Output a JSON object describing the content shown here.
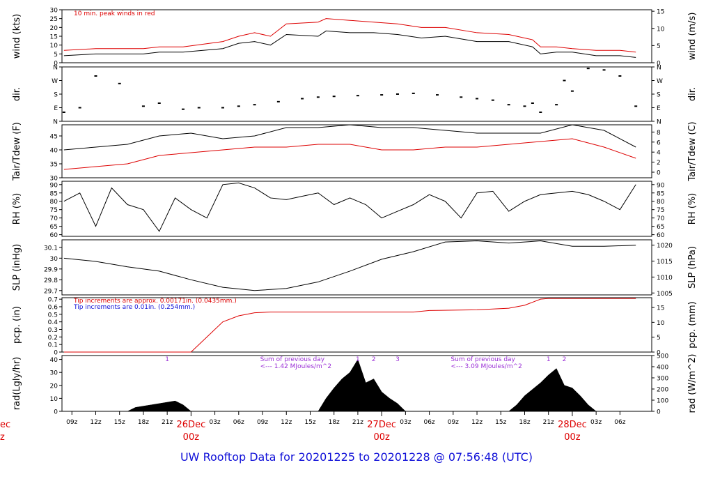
{
  "page": {
    "title": "UW Rooftop Data for 20201225  to  20201228 @ 07:56:48  (UTC)"
  },
  "chart_data": [
    {
      "type": "line",
      "ylabel": "wind (kts)",
      "ylabel_right": "wind (m/s)",
      "ylim": [
        0,
        30
      ],
      "ylim_right": [
        0,
        15.43
      ],
      "yticks": [
        0,
        5,
        10,
        15,
        20,
        25,
        30
      ],
      "yticks_right": [
        0,
        5,
        10,
        15
      ],
      "annotation": "10 min. peak winds in red",
      "series": [
        {
          "color": "#000000",
          "x": [
            8.0,
            12,
            18,
            20,
            23,
            28,
            30,
            32,
            34,
            36,
            40,
            41,
            44,
            47,
            50,
            53,
            56,
            60,
            64,
            67,
            68,
            70,
            72,
            75,
            78,
            80
          ],
          "y": [
            4,
            5,
            5,
            6,
            6,
            8,
            11,
            12,
            10,
            16,
            15,
            18,
            17,
            17,
            16,
            14,
            15,
            12,
            12,
            9,
            5,
            6,
            6,
            4,
            4,
            3
          ]
        },
        {
          "color": "#dd0000",
          "x": [
            8.0,
            12,
            18,
            20,
            23,
            28,
            30,
            32,
            34,
            36,
            40,
            41,
            44,
            47,
            50,
            53,
            56,
            60,
            64,
            67,
            68,
            70,
            72,
            75,
            78,
            80
          ],
          "y": [
            7,
            8,
            8,
            9,
            9,
            12,
            15,
            17,
            15,
            22,
            23,
            25,
            24,
            23,
            22,
            20,
            20,
            17,
            16,
            13,
            9,
            9,
            8,
            7,
            7,
            6
          ]
        }
      ]
    },
    {
      "type": "scatter",
      "ylabel": "dir.",
      "ylabel_right": "dir.",
      "yticks": [
        "N",
        "E",
        "S",
        "W",
        "N"
      ],
      "ylim": [
        0,
        360
      ],
      "series": [
        {
          "color": "#000000",
          "x": [
            8,
            10,
            12,
            15,
            18,
            20,
            23,
            25,
            28,
            30,
            32,
            35,
            38,
            40,
            42,
            45,
            48,
            50,
            52,
            55,
            58,
            60,
            62,
            64,
            66,
            67,
            68,
            70,
            71,
            72,
            74,
            76,
            78,
            80
          ],
          "y": [
            60,
            90,
            300,
            250,
            100,
            120,
            80,
            90,
            90,
            100,
            110,
            130,
            150,
            160,
            165,
            170,
            175,
            180,
            185,
            175,
            160,
            150,
            140,
            110,
            100,
            120,
            60,
            110,
            270,
            200,
            350,
            340,
            300,
            100
          ]
        }
      ]
    },
    {
      "type": "line",
      "ylabel": "Tair/Tdew (F)",
      "ylabel_right": "Tair/Tdew (C)",
      "ylim": [
        30,
        49
      ],
      "yticks": [
        30,
        35,
        40,
        45
      ],
      "yticks_right": [
        0,
        2,
        4,
        6,
        8
      ],
      "series": [
        {
          "color": "#000000",
          "x": [
            8,
            12,
            16,
            20,
            24,
            28,
            32,
            36,
            40,
            44,
            48,
            52,
            56,
            60,
            64,
            68,
            72,
            76,
            80
          ],
          "y": [
            40,
            41,
            42,
            45,
            46,
            44,
            45,
            48,
            48,
            49,
            48,
            48,
            47,
            46,
            46,
            46,
            49,
            47,
            41
          ]
        },
        {
          "color": "#dd0000",
          "x": [
            8,
            12,
            16,
            20,
            24,
            28,
            32,
            36,
            40,
            44,
            48,
            52,
            56,
            60,
            64,
            68,
            72,
            76,
            80
          ],
          "y": [
            33,
            34,
            35,
            38,
            39,
            40,
            41,
            41,
            42,
            42,
            40,
            40,
            41,
            41,
            42,
            43,
            44,
            41,
            37
          ]
        }
      ]
    },
    {
      "type": "line",
      "ylabel": "RH (%)",
      "ylabel_right": "RH (%)",
      "ylim": [
        59,
        92
      ],
      "yticks": [
        60,
        65,
        70,
        75,
        80,
        85,
        90
      ],
      "yticks_right": [
        60,
        65,
        70,
        75,
        80,
        85,
        90
      ],
      "series": [
        {
          "color": "#000000",
          "x": [
            8,
            10,
            12,
            14,
            16,
            18,
            20,
            22,
            24,
            26,
            28,
            30,
            32,
            34,
            36,
            38,
            40,
            42,
            44,
            46,
            48,
            50,
            52,
            54,
            56,
            58,
            60,
            62,
            64,
            66,
            68,
            70,
            72,
            74,
            76,
            78,
            80
          ],
          "y": [
            80,
            85,
            65,
            88,
            78,
            75,
            62,
            82,
            75,
            70,
            90,
            91,
            88,
            82,
            81,
            83,
            85,
            78,
            82,
            78,
            70,
            74,
            78,
            84,
            80,
            70,
            85,
            86,
            74,
            80,
            84,
            85,
            86,
            84,
            80,
            75,
            90
          ]
        }
      ]
    },
    {
      "type": "line",
      "ylabel": "SLP (inHg)",
      "ylabel_right": "SLP (hPa)",
      "ylim": [
        29.66,
        30.17
      ],
      "yticks": [
        29.7,
        29.8,
        29.9,
        30.0,
        30.1
      ],
      "yticks_right": [
        1005,
        1010,
        1015,
        1020
      ],
      "series": [
        {
          "color": "#000000",
          "x": [
            8,
            12,
            16,
            20,
            24,
            28,
            32,
            36,
            40,
            44,
            48,
            52,
            56,
            60,
            64,
            68,
            72,
            76,
            80
          ],
          "y": [
            30.0,
            29.97,
            29.92,
            29.88,
            29.8,
            29.73,
            29.7,
            29.72,
            29.78,
            29.88,
            29.99,
            30.06,
            30.15,
            30.16,
            30.14,
            30.16,
            30.11,
            30.11,
            30.12
          ]
        }
      ]
    },
    {
      "type": "line",
      "ylabel": "pcp. (in)",
      "ylabel_right": "pcp. (mm)",
      "ylim": [
        0,
        0.72
      ],
      "yticks": [
        0.0,
        0.1,
        0.2,
        0.3,
        0.4,
        0.5,
        0.6,
        0.7
      ],
      "yticks_right": [
        0,
        5,
        10,
        15
      ],
      "annotations": [
        {
          "text": "Tip increments are approx. 0.00171in. (0.0435mm.)",
          "color": "#dd0000"
        },
        {
          "text": "Tip increments are 0.01in. (0.254mm.)",
          "color": "#1010d8"
        }
      ],
      "series": [
        {
          "color": "#dd0000",
          "x": [
            8,
            20,
            24,
            26,
            28,
            30,
            32,
            34,
            40,
            48,
            52,
            54,
            60,
            64,
            66,
            68,
            69,
            80
          ],
          "y": [
            0,
            0,
            0,
            0.2,
            0.4,
            0.48,
            0.52,
            0.53,
            0.53,
            0.53,
            0.53,
            0.55,
            0.56,
            0.58,
            0.62,
            0.7,
            0.71,
            0.71
          ]
        }
      ]
    },
    {
      "type": "area",
      "ylabel": "rad(Lgly/hr)",
      "ylabel_right": "rad (W/m^2)",
      "ylim": [
        0,
        43
      ],
      "yticks": [
        0,
        10,
        20,
        30,
        40
      ],
      "yticks_right": [
        0,
        100,
        200,
        300,
        400,
        500
      ],
      "annotations": [
        {
          "text": "1",
          "x": 21
        },
        {
          "text": "1",
          "x": 45
        },
        {
          "text": "2",
          "x": 47
        },
        {
          "text": "3",
          "x": 50
        },
        {
          "text": "1",
          "x": 69
        },
        {
          "text": "2",
          "x": 71
        },
        {
          "text": "Sum of previous day",
          "x": 32
        },
        {
          "text": "<--- 1.42 MJoules/m^2",
          "x": 32
        },
        {
          "text": "Sum of previous day",
          "x": 56
        },
        {
          "text": "<--- 3.09 MJoules/m^2",
          "x": 56
        }
      ],
      "series": [
        {
          "color": "#000000",
          "x": [
            16,
            17,
            18,
            19,
            20,
            21,
            22,
            23,
            24,
            40,
            41,
            42,
            43,
            44,
            45,
            46,
            47,
            48,
            49,
            50,
            51,
            64,
            65,
            66,
            67,
            68,
            69,
            70,
            71,
            72,
            73,
            74,
            75
          ],
          "y": [
            0,
            3,
            4,
            5,
            6,
            7,
            8,
            5,
            0,
            0,
            10,
            18,
            25,
            30,
            40,
            22,
            25,
            15,
            10,
            6,
            0,
            0,
            5,
            12,
            17,
            22,
            28,
            33,
            20,
            18,
            12,
            5,
            0
          ]
        }
      ]
    }
  ],
  "x_axis": {
    "ticks": [
      "09z",
      "12z",
      "15z",
      "18z",
      "21z",
      "03z",
      "06z",
      "09z",
      "12z",
      "15z",
      "18z",
      "21z",
      "03z",
      "06z",
      "09z",
      "12z",
      "15z",
      "18z",
      "21z",
      "03z",
      "06z"
    ],
    "day_labels": [
      {
        "day": "26Dec",
        "time": "00z"
      },
      {
        "day": "27Dec",
        "time": "00z"
      },
      {
        "day": "28Dec",
        "time": "00z"
      }
    ],
    "clipped_left_label": {
      "day": "ec",
      "time": "z"
    }
  }
}
